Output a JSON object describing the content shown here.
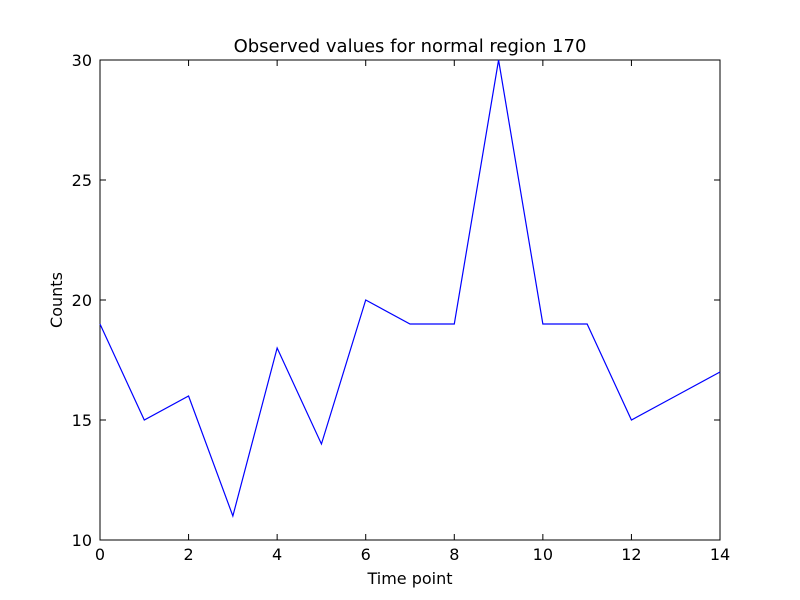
{
  "chart_data": {
    "type": "line",
    "title": "Observed values for normal region 170",
    "xlabel": "Time point",
    "ylabel": "Counts",
    "xlim": [
      0,
      14
    ],
    "ylim": [
      10,
      30
    ],
    "xticks": [
      0,
      2,
      4,
      6,
      8,
      10,
      12,
      14
    ],
    "yticks": [
      10,
      15,
      20,
      25,
      30
    ],
    "grid": false,
    "x": [
      0,
      1,
      2,
      3,
      4,
      5,
      6,
      7,
      8,
      9,
      10,
      11,
      12,
      13,
      14
    ],
    "series": [
      {
        "values": [
          19,
          15,
          16,
          11,
          18,
          14,
          20,
          19,
          19,
          30,
          19,
          19,
          15,
          16,
          17
        ],
        "color": "#0000ff"
      }
    ]
  }
}
